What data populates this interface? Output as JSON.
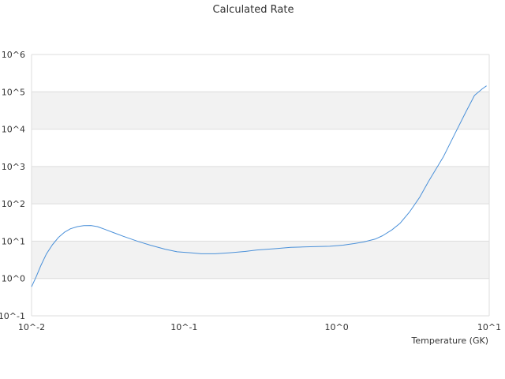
{
  "chart_data": {
    "type": "line",
    "title": "Calculated Rate",
    "xlabel": "Temperature (GK)",
    "ylabel": "",
    "x_scale": "log",
    "y_scale": "log",
    "xlim": [
      0.01,
      10
    ],
    "ylim": [
      0.1,
      1000000
    ],
    "x_tick_values": [
      0.01,
      0.1,
      1,
      10
    ],
    "y_tick_values": [
      0.1,
      1,
      10,
      100,
      1000,
      10000,
      100000,
      1000000
    ],
    "x_tick_labels": [
      "10^-2",
      "10^-1",
      "10^0",
      "10^1"
    ],
    "y_tick_labels": [
      "10^-1",
      "10^0",
      "10^1",
      "10^2",
      "10^3",
      "10^4",
      "10^5",
      "10^6"
    ],
    "grid": true,
    "legend": "none",
    "band_color": "#f2f2f2",
    "gridline_color": "#dddddd",
    "line_color": "#4a90d9",
    "series": [
      {
        "values_x": [
          0.01,
          0.0107,
          0.0115,
          0.0125,
          0.0137,
          0.015,
          0.0165,
          0.018,
          0.02,
          0.022,
          0.0245,
          0.027,
          0.03,
          0.035,
          0.04,
          0.05,
          0.06,
          0.075,
          0.09,
          0.11,
          0.13,
          0.16,
          0.2,
          0.25,
          0.3,
          0.4,
          0.5,
          0.6,
          0.75,
          0.9,
          1.1,
          1.3,
          1.5,
          1.8,
          2.0,
          2.3,
          2.6,
          3.0,
          3.5,
          4.0,
          5.0,
          6.0,
          7.0,
          8.0,
          9.0,
          9.6
        ],
        "values_y": [
          0.6,
          1.1,
          2.2,
          4.5,
          8.0,
          12.5,
          17.5,
          21.5,
          24.5,
          26.0,
          26.2,
          24.5,
          21.0,
          16.5,
          13.5,
          9.8,
          7.8,
          6.1,
          5.2,
          4.9,
          4.6,
          4.6,
          4.9,
          5.3,
          5.8,
          6.3,
          6.8,
          7.0,
          7.2,
          7.3,
          7.8,
          8.6,
          9.5,
          11.5,
          14.0,
          20.0,
          30.0,
          60.0,
          150.0,
          400.0,
          1800.0,
          8000.0,
          28000.0,
          80000.0,
          120000.0,
          145000.0
        ]
      }
    ]
  }
}
